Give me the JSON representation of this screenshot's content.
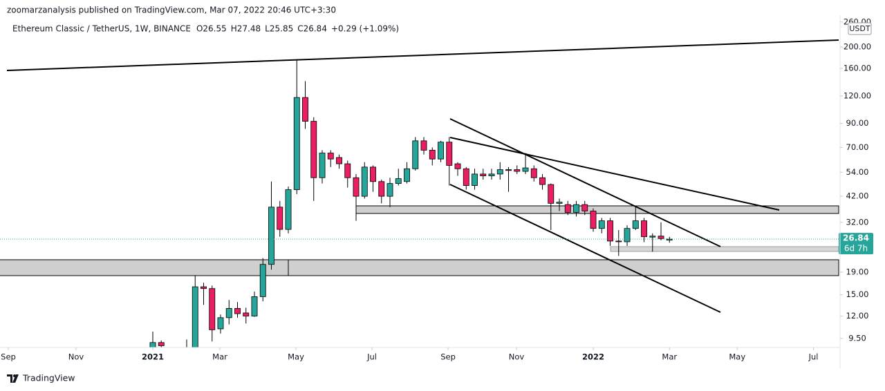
{
  "chart_data": {
    "type": "candlestick",
    "publisher_line": "zoomarzanalysis published on TradingView.com, Mar 07, 2022 20:46 UTC+3:30",
    "symbol": "Ethereum Classic / TetherUS, 1W, BINANCE",
    "ohlc_labels": [
      "O26.55",
      "H27.48",
      "L25.85",
      "C26.84"
    ],
    "change": "+0.29 (+1.09%)",
    "currency": "USDT",
    "last_price": 26.84,
    "countdown": "6d 7h",
    "brand": "TradingView",
    "up_color": "#26a69a",
    "down_color": "#e91e63",
    "log_scale": true,
    "x": [
      0,
      1,
      2,
      3,
      4,
      5,
      6,
      7,
      8,
      9,
      10,
      11,
      12,
      13,
      14,
      15,
      16,
      17,
      18,
      19,
      20,
      21,
      22,
      23,
      24,
      25,
      26,
      27,
      28,
      29,
      30,
      31,
      32,
      33,
      34,
      35,
      36,
      37,
      38,
      39,
      40,
      41,
      42,
      43,
      44,
      45,
      46,
      47,
      48,
      49,
      50,
      51,
      52,
      53,
      54,
      55,
      56,
      57,
      58,
      59,
      60,
      61
    ],
    "open": [
      8.5,
      9.1,
      8.6,
      7.4,
      7.8,
      8.5,
      16.3,
      16,
      10.5,
      11.8,
      13,
      12.4,
      12,
      14.7,
      20.6,
      37.5,
      29.7,
      45,
      118,
      92,
      51,
      66,
      63,
      59,
      51,
      42,
      57,
      49,
      42,
      48,
      49,
      56,
      75,
      68,
      62,
      74,
      59,
      56,
      47,
      53,
      52,
      53,
      55.5,
      55.5,
      54.5,
      56,
      51,
      47.5,
      39,
      38.5,
      35.5,
      38.5,
      36,
      30,
      32.5,
      26.3,
      26.1,
      30,
      32.5,
      27.4,
      27.7,
      26.55
    ],
    "high": [
      10.2,
      9.3,
      8.6,
      8.4,
      9.4,
      18.4,
      17,
      16.5,
      12.2,
      14.2,
      13.9,
      13.1,
      15.5,
      22,
      49,
      40,
      46.5,
      176,
      140,
      96,
      68,
      68,
      65,
      61,
      53,
      60,
      58,
      50,
      51,
      56,
      60,
      78,
      78,
      70,
      75,
      78,
      60,
      57,
      56,
      56,
      56,
      60,
      57,
      58,
      66,
      58,
      53,
      48,
      41,
      40,
      40,
      40,
      37,
      33.5,
      33.5,
      29.5,
      31,
      37.5,
      33.5,
      28.5,
      32,
      27.48
    ],
    "low": [
      8.2,
      8.3,
      7,
      7,
      7.5,
      8,
      13.5,
      9.2,
      10,
      11,
      11.8,
      11.1,
      11.9,
      14,
      19.5,
      27.5,
      28.5,
      43,
      85,
      40,
      48,
      57,
      56,
      46,
      32.5,
      41,
      44,
      39,
      37.5,
      47,
      48,
      55,
      65,
      58,
      60,
      47,
      52,
      45,
      45,
      50,
      50,
      50,
      44,
      53,
      53,
      49,
      45,
      29.5,
      36,
      34.5,
      34,
      34.5,
      29,
      28.5,
      25,
      22.5,
      25,
      29.5,
      26,
      23.5,
      26.5,
      25.85
    ],
    "close": [
      9.1,
      8.8,
      7.4,
      7.8,
      8.5,
      16.3,
      16,
      10.4,
      11.8,
      13,
      12.3,
      12,
      14.7,
      20.6,
      37.5,
      29.7,
      45,
      118,
      92,
      51,
      66,
      62,
      59,
      51,
      42,
      57,
      49,
      42,
      48,
      50.5,
      56,
      75,
      68,
      62,
      74,
      58,
      56,
      47,
      53,
      52,
      53,
      55.5,
      55,
      54.5,
      56.5,
      51,
      47.5,
      39,
      39.5,
      35.5,
      38.5,
      36,
      30,
      32.5,
      26.3,
      26.1,
      30,
      32.5,
      27.5,
      27.7,
      27,
      26.84
    ],
    "xlim": [
      -18.04,
      81.14
    ],
    "xticks": [
      {
        "value": -17.06,
        "label": "Sep"
      },
      {
        "value": -9.06,
        "label": "Nov"
      },
      {
        "value": 0,
        "label": "2021"
      },
      {
        "value": 7.92,
        "label": "Mar"
      },
      {
        "value": 16.9,
        "label": "May"
      },
      {
        "value": 25.88,
        "label": "Jul"
      },
      {
        "value": 34.86,
        "label": "Sep"
      },
      {
        "value": 42.94,
        "label": "Nov"
      },
      {
        "value": 52,
        "label": "2022"
      },
      {
        "value": 61,
        "label": "Mar"
      },
      {
        "value": 69,
        "label": "May"
      },
      {
        "value": 78,
        "label": "Jul"
      }
    ],
    "ylim": [
      8.64,
      275
    ],
    "yticks": [
      {
        "value": 9.5,
        "label": "9.50"
      },
      {
        "value": 12,
        "label": "12.00"
      },
      {
        "value": 15,
        "label": "15.00"
      },
      {
        "value": 19,
        "label": "19.00"
      },
      {
        "value": 32,
        "label": "32.00"
      },
      {
        "value": 42,
        "label": "42.00"
      },
      {
        "value": 54,
        "label": "54.00"
      },
      {
        "value": 70,
        "label": "70.00"
      },
      {
        "value": 90,
        "label": "90.00"
      },
      {
        "value": 120,
        "label": "120.00"
      },
      {
        "value": 160,
        "label": "160.00"
      },
      {
        "value": 200,
        "label": "200.00"
      },
      {
        "value": 260,
        "label": "260.00"
      }
    ]
  }
}
